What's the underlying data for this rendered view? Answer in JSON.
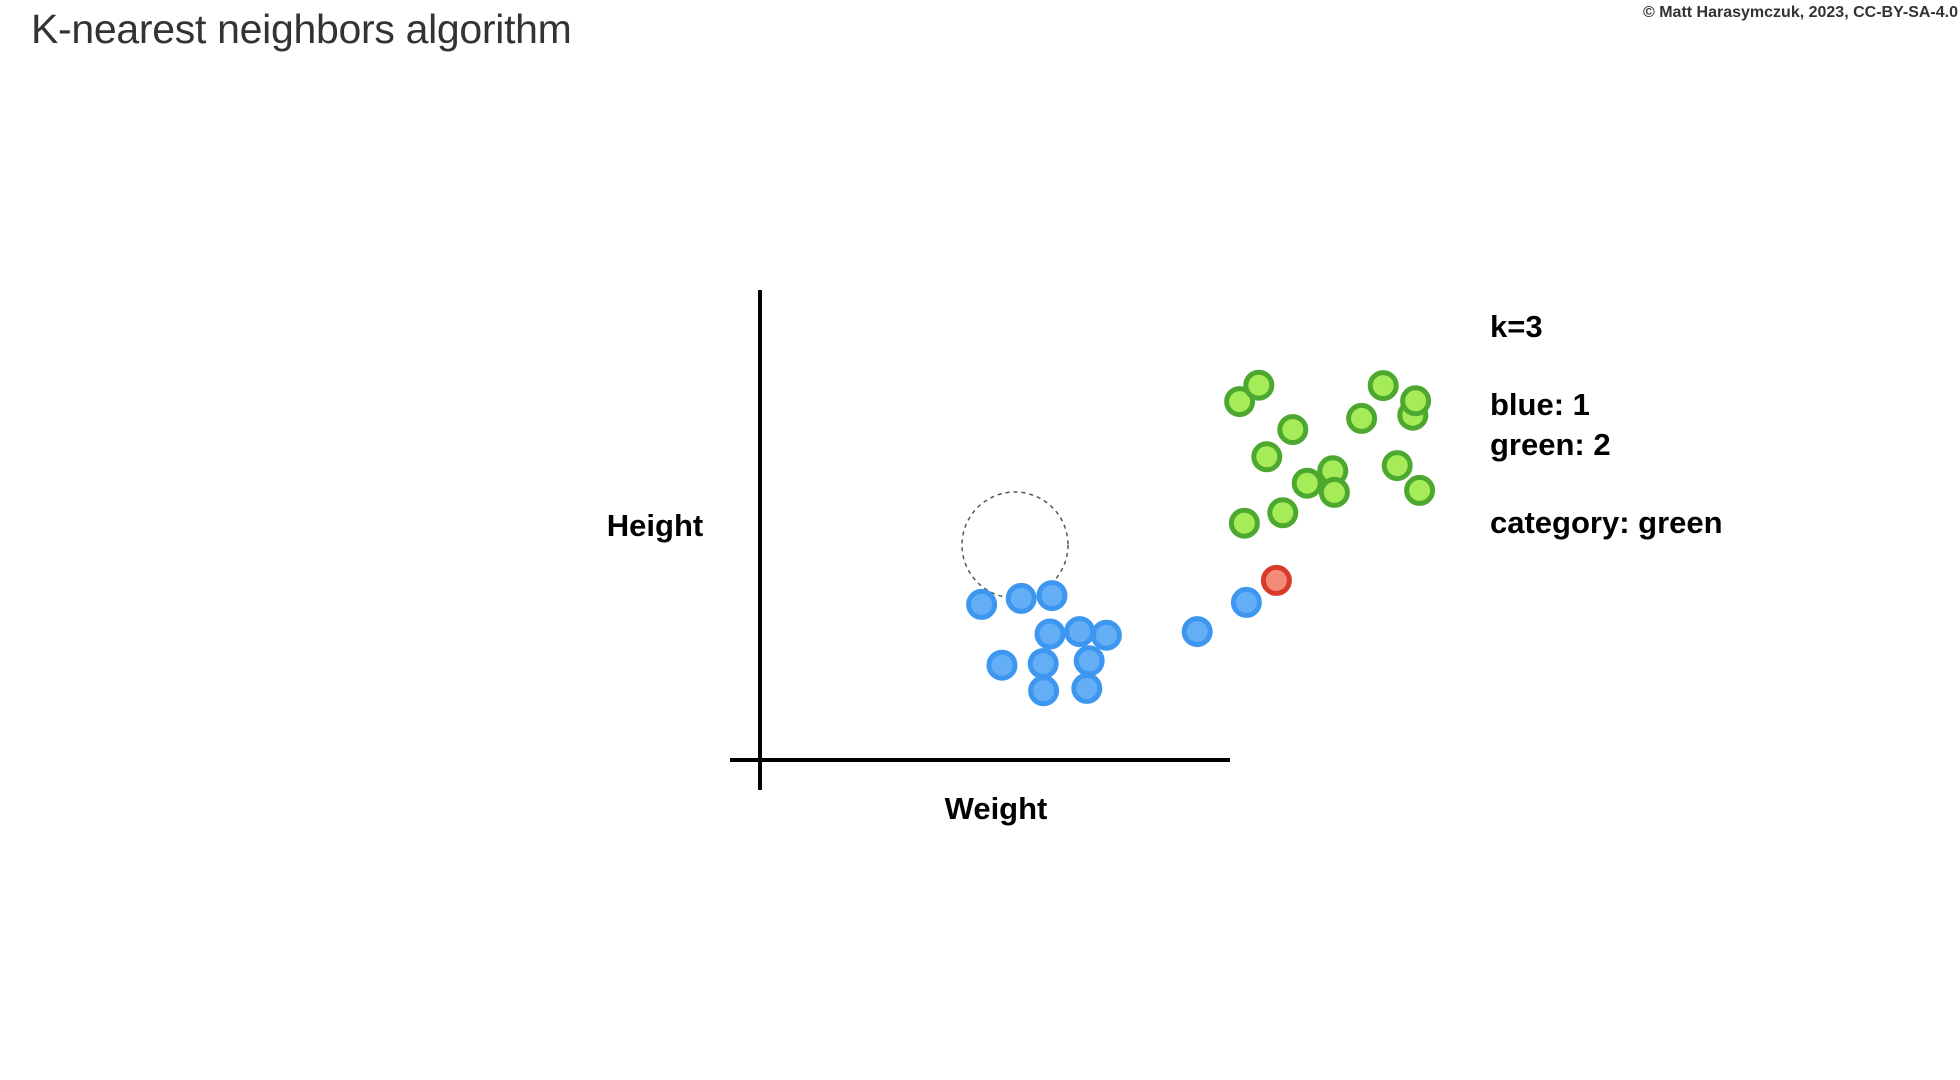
{
  "title": "K-nearest neighbors algorithm",
  "copyright": "© Matt Harasymczuk, 2023, CC-BY-SA-4.0",
  "axes": {
    "x_label": "Weight",
    "y_label": "Height"
  },
  "info": {
    "k": "k=3",
    "blue_count": "blue: 1",
    "green_count": "green: 2",
    "category": "category: green"
  },
  "colors": {
    "blue_stroke": "#3d96f0",
    "blue_fill": "#64aef5",
    "green_stroke": "#4ca82f",
    "green_fill": "#a6ec58",
    "red_stroke": "#d83a2b",
    "red_fill": "#f28b7a",
    "axis": "#000000"
  },
  "chart_data": {
    "type": "scatter",
    "xlabel": "Weight",
    "ylabel": "Height",
    "title": "",
    "k": 3,
    "series": [
      {
        "name": "blue",
        "x": [
          55.4,
          65.3,
          73.0,
          72.5,
          79.9,
          86.6,
          60.5,
          70.8,
          82.3,
          70.9,
          81.7,
          109.3,
          121.6
        ],
        "y": [
          38.9,
          40.4,
          41.1,
          31.5,
          32.1,
          31.2,
          23.7,
          24.1,
          24.8,
          17.3,
          17.9,
          32.1,
          39.4
        ]
      },
      {
        "name": "green",
        "x": [
          163.2,
          126.7,
          133.2,
          150.4,
          163.9,
          119.9,
          155.8,
          124.7,
          159.3,
          130.7,
          143.2,
          136.8,
          143.6,
          164.9,
          121.1
        ],
        "y": [
          86.2,
          75.8,
          82.6,
          85.4,
          89.8,
          89.6,
          93.6,
          93.7,
          73.6,
          61.8,
          72.3,
          69.2,
          66.9,
          67.4,
          59.2
        ]
      },
      {
        "name": "query",
        "x": [
          129.1
        ],
        "y": [
          44.9
        ]
      }
    ]
  }
}
